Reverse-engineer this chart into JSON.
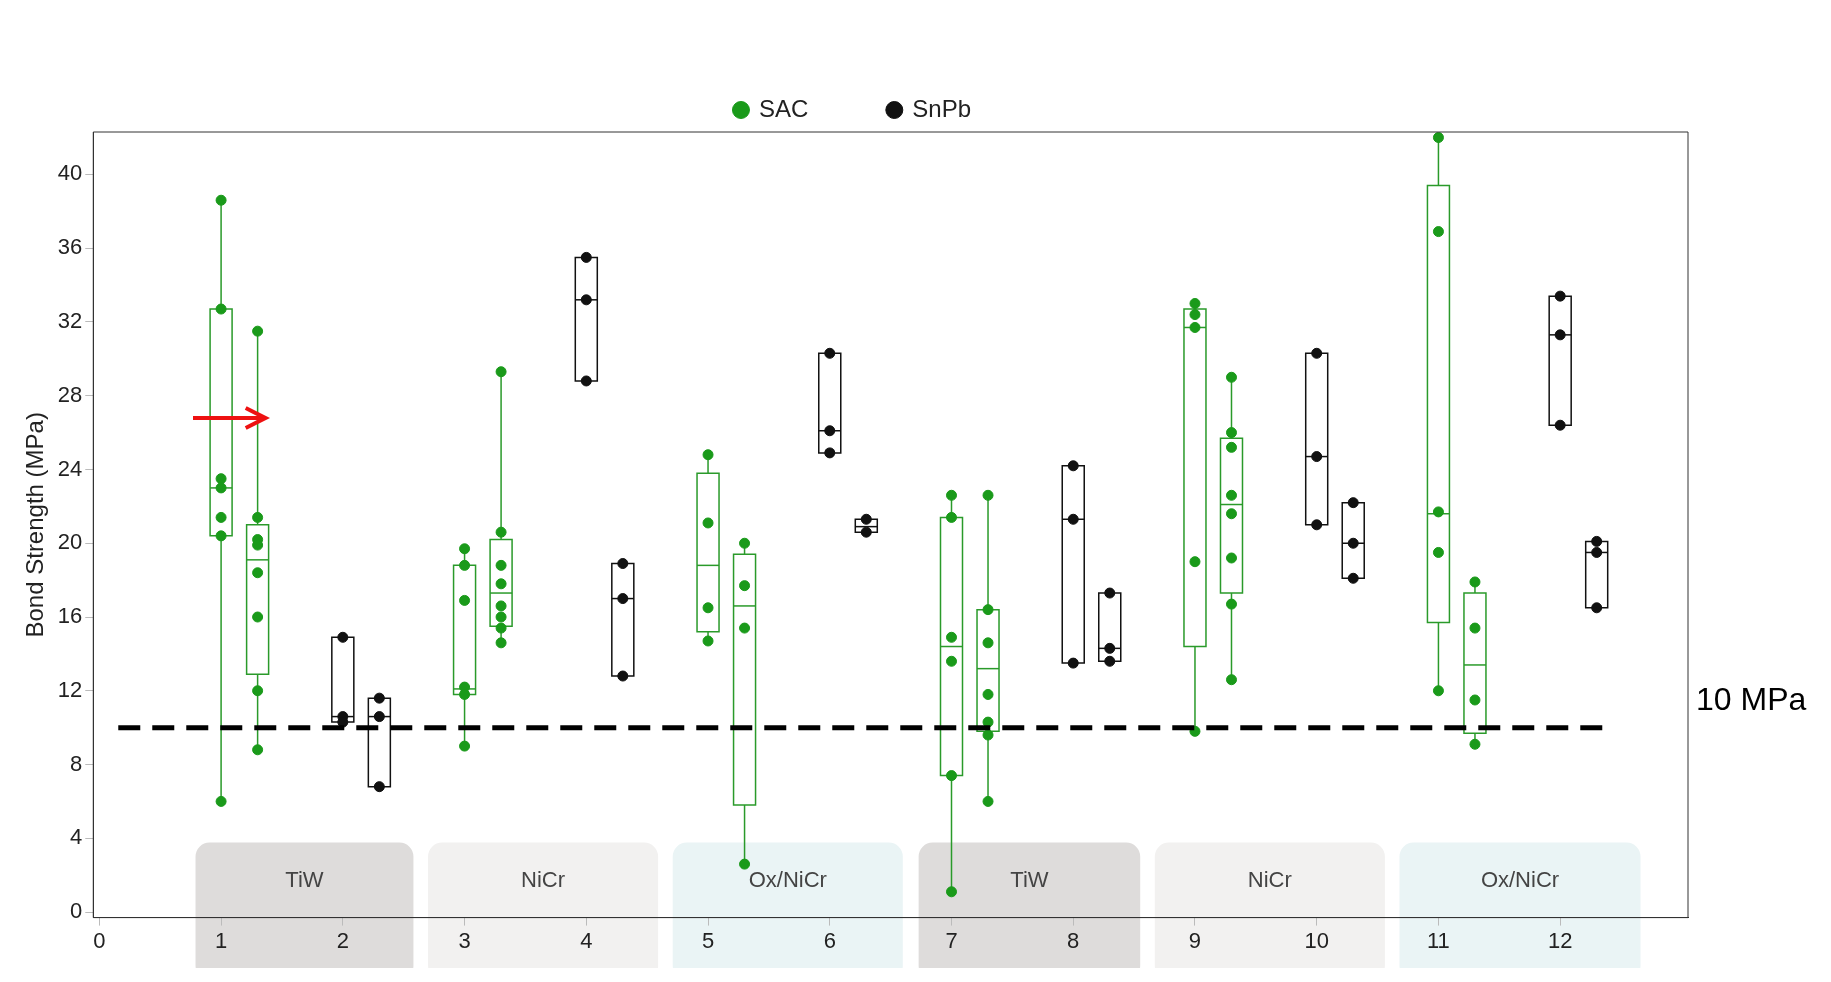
{
  "chart_data": {
    "type": "box",
    "ylabel": "Bond Strength (MPa)",
    "xlim": [
      -0.05,
      13.05
    ],
    "ylim": [
      -0.3,
      42.3
    ],
    "xticks": [
      0,
      1,
      2,
      3,
      4,
      5,
      6,
      7,
      8,
      9,
      10,
      11,
      12
    ],
    "yticks": [
      0,
      4,
      8,
      12,
      16,
      20,
      24,
      28,
      32,
      36,
      40
    ],
    "grid": false,
    "legend": "top",
    "marker": "circle",
    "series": [
      {
        "color": "#2a9a2a",
        "x": [
          1,
          1.3,
          3,
          3.3,
          5,
          5.3,
          7,
          7.3,
          9,
          9.3,
          11,
          11.3
        ],
        "boxes": [
          {
            "low": 6.0,
            "q1": 20.4,
            "median": 23.0,
            "q3": 32.7,
            "high": 38.6
          },
          {
            "low": 8.8,
            "q1": 12.9,
            "median": 19.1,
            "q3": 21.0,
            "high": 31.5
          },
          {
            "low": 9.0,
            "q1": 11.8,
            "median": 12.1,
            "q3": 18.8,
            "high": 19.7
          },
          {
            "low": 14.6,
            "q1": 15.5,
            "median": 17.3,
            "q3": 20.2,
            "high": 29.3
          },
          {
            "low": 14.7,
            "q1": 15.2,
            "median": 18.8,
            "q3": 23.8,
            "high": 24.8
          },
          {
            "low": 2.6,
            "q1": 5.8,
            "median": 16.6,
            "q3": 19.4,
            "high": 20.0
          },
          {
            "low": 1.1,
            "q1": 7.4,
            "median": 14.4,
            "q3": 21.4,
            "high": 22.6
          },
          {
            "low": 6.0,
            "q1": 9.8,
            "median": 13.2,
            "q3": 16.4,
            "high": 22.6
          },
          {
            "low": 9.8,
            "q1": 14.4,
            "median": 31.7,
            "q3": 32.7,
            "high": 33.0
          },
          {
            "low": 12.6,
            "q1": 17.3,
            "median": 22.1,
            "q3": 25.7,
            "high": 29.0
          },
          {
            "low": 12.0,
            "q1": 15.7,
            "median": 21.6,
            "q3": 39.4,
            "high": 42.0
          },
          {
            "low": 9.1,
            "q1": 9.7,
            "median": 13.4,
            "q3": 17.3,
            "high": 17.9
          }
        ]
      },
      {
        "color": "#111111",
        "x": [
          2,
          2.3,
          4,
          4.3,
          6,
          6.3,
          8,
          8.3,
          10,
          10.3,
          12,
          12.3
        ],
        "boxes": [
          {
            "low": 10.3,
            "q1": 10.3,
            "median": 10.6,
            "q3": 14.9,
            "high": 14.9
          },
          {
            "low": 6.8,
            "q1": 6.8,
            "median": 10.6,
            "q3": 11.6,
            "high": 11.6
          },
          {
            "low": 28.8,
            "q1": 28.8,
            "median": 33.2,
            "q3": 35.5,
            "high": 35.5
          },
          {
            "low": 12.8,
            "q1": 12.8,
            "median": 17.0,
            "q3": 18.9,
            "high": 18.9
          },
          {
            "low": 24.9,
            "q1": 24.9,
            "median": 26.1,
            "q3": 30.3,
            "high": 30.3
          },
          {
            "low": 20.6,
            "q1": 20.6,
            "median": 20.9,
            "q3": 21.3,
            "high": 21.3
          },
          {
            "low": 13.5,
            "q1": 13.5,
            "median": 21.3,
            "q3": 24.2,
            "high": 24.2
          },
          {
            "low": 13.6,
            "q1": 13.6,
            "median": 14.3,
            "q3": 17.3,
            "high": 17.3
          },
          {
            "low": 21.0,
            "q1": 21.0,
            "median": 24.7,
            "q3": 30.3,
            "high": 30.3
          },
          {
            "low": 18.1,
            "q1": 18.1,
            "median": 20.0,
            "q3": 22.2,
            "high": 22.2
          },
          {
            "low": 26.4,
            "q1": 26.4,
            "median": 31.3,
            "q3": 33.4,
            "high": 33.4
          },
          {
            "low": 16.5,
            "q1": 16.5,
            "median": 19.5,
            "q3": 20.1,
            "high": 20.1
          }
        ]
      },
      {
        "type": "scatter",
        "name": "SAC",
        "color": "#1a9a1a",
        "x": [
          1,
          1,
          1,
          1,
          1,
          1,
          1,
          1.3,
          1.3,
          1.3,
          1.3,
          1.3,
          1.3,
          1.3,
          1.3,
          3,
          3,
          3,
          3,
          3,
          3,
          3.3,
          3.3,
          3.3,
          3.3,
          3.3,
          3.3,
          3.3,
          3.3,
          5,
          5,
          5,
          5,
          5.3,
          5.3,
          5.3,
          5.3,
          7,
          7,
          7,
          7,
          7,
          7,
          7.3,
          7.3,
          7.3,
          7.3,
          7.3,
          7.3,
          7.3,
          9,
          9,
          9,
          9,
          9,
          9.3,
          9.3,
          9.3,
          9.3,
          9.3,
          9.3,
          9.3,
          9.3,
          11,
          11,
          11,
          11,
          11,
          11.3,
          11.3,
          11.3,
          11.3
        ],
        "values": [
          38.6,
          32.7,
          23.5,
          23.0,
          21.4,
          20.4,
          6.0,
          31.5,
          21.4,
          20.2,
          19.9,
          18.4,
          16.0,
          12.0,
          8.8,
          19.7,
          18.8,
          16.9,
          12.2,
          11.8,
          9.0,
          29.3,
          20.6,
          18.8,
          17.8,
          16.6,
          16.0,
          15.4,
          14.6,
          24.8,
          21.1,
          16.5,
          14.7,
          20.0,
          17.7,
          15.4,
          2.6,
          22.6,
          21.4,
          14.9,
          13.6,
          7.4,
          1.1,
          22.6,
          16.4,
          14.6,
          11.8,
          10.3,
          9.6,
          6.0,
          33.0,
          32.4,
          31.7,
          19.0,
          9.8,
          29.0,
          26.0,
          25.2,
          22.6,
          21.6,
          19.2,
          16.7,
          12.6,
          42.0,
          36.9,
          21.7,
          19.5,
          12.0,
          17.9,
          15.4,
          11.5,
          9.1
        ]
      },
      {
        "type": "scatter",
        "name": "SnPb",
        "color": "#111111",
        "x": [
          2,
          2,
          2,
          2.3,
          2.3,
          2.3,
          4,
          4,
          4,
          4.3,
          4.3,
          4.3,
          6,
          6,
          6,
          6.3,
          6.3,
          8,
          8,
          8,
          8.3,
          8.3,
          8.3,
          10,
          10,
          10,
          10.3,
          10.3,
          10.3,
          12,
          12,
          12,
          12.3,
          12.3,
          12.3
        ],
        "values": [
          14.9,
          10.6,
          10.3,
          11.6,
          10.6,
          6.8,
          35.5,
          33.2,
          28.8,
          18.9,
          17.0,
          12.8,
          30.3,
          26.1,
          24.9,
          21.3,
          20.6,
          24.2,
          21.3,
          13.5,
          17.3,
          14.3,
          13.6,
          30.3,
          24.7,
          21.0,
          22.2,
          20.0,
          18.1,
          33.4,
          31.3,
          26.4,
          20.1,
          19.5,
          16.5
        ]
      }
    ],
    "ref_lines": [
      {
        "axis": "y",
        "value": 10,
        "label": "10 MPa",
        "color": "#000000",
        "line_style": "dashed"
      }
    ],
    "bands": [
      {
        "axis": "x",
        "from": 0.79,
        "to": 2.58,
        "label": "TiW",
        "color": "#dedcdb"
      },
      {
        "axis": "x",
        "from": 2.7,
        "to": 4.59,
        "label": "NiCr",
        "color": "#f2f1f0"
      },
      {
        "axis": "x",
        "from": 4.71,
        "to": 6.6,
        "label": "Ox/NiCr",
        "color": "#eaf4f5"
      },
      {
        "axis": "x",
        "from": 6.73,
        "to": 8.55,
        "label": "TiW",
        "color": "#dedcdb"
      },
      {
        "axis": "x",
        "from": 8.67,
        "to": 10.56,
        "label": "NiCr",
        "color": "#f2f1f0"
      },
      {
        "axis": "x",
        "from": 10.68,
        "to": 12.66,
        "label": "Ox/NiCr",
        "color": "#eaf4f5"
      }
    ]
  }
}
